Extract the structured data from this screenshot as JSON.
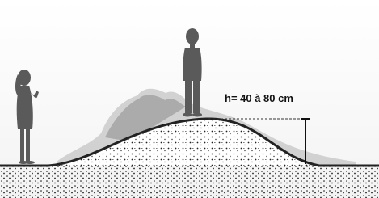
{
  "annotation": "h= 40 à 80 cm"
}
